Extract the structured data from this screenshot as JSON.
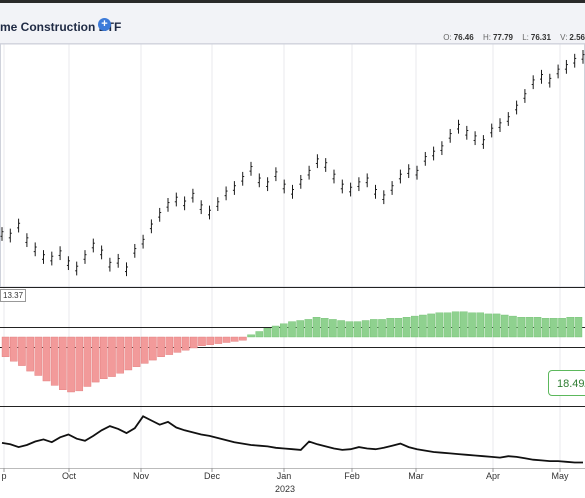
{
  "header": {
    "title": "me Construction ETF",
    "info_icon": "info-circle-icon",
    "ohlc": [
      {
        "key": "O:",
        "value": "76.46"
      },
      {
        "key": "H:",
        "value": "77.79"
      },
      {
        "key": "L:",
        "value": "76.31"
      },
      {
        "key": "V:",
        "value": "2.56"
      }
    ]
  },
  "panels": {
    "indicator_label": "13.37",
    "badge_value": "18.49/"
  },
  "x_axis": {
    "month_labels": [
      "p",
      "Oct",
      "Nov",
      "Dec",
      "Jan",
      "Feb",
      "Mar",
      "Apr",
      "May"
    ],
    "year_label": "2023"
  },
  "colors": {
    "price_bars": "#1a1a1a",
    "positive_histogram": "#8fd18f",
    "negative_histogram": "#f29a9a",
    "line": "#111111",
    "accent": "#3d7bd9"
  },
  "chart_data": [
    {
      "type": "ohlc",
      "series": [
        {
          "values": [
            24.0,
            23.8,
            25.1,
            23.2,
            22.0,
            21.0,
            20.8,
            21.5,
            20.2,
            19.5,
            21.0,
            22.5,
            21.6,
            20.0,
            20.5,
            19.4,
            21.8,
            23.0,
            25.0,
            26.5,
            27.8,
            28.5,
            28.0,
            29.0,
            27.5,
            26.8,
            27.9,
            29.3,
            30.0,
            31.2,
            32.5,
            31.0,
            30.5,
            31.8,
            30.2,
            29.5,
            30.8,
            32.0,
            33.5,
            33.0,
            31.5,
            30.2,
            29.8,
            30.5,
            31.0,
            29.5,
            28.8,
            30.0,
            31.5,
            32.2,
            32.0,
            33.8,
            34.5,
            35.2,
            36.8,
            38.0,
            37.2,
            36.5,
            36.0,
            37.5,
            38.2,
            39.0,
            40.5,
            42.0,
            43.8,
            44.5,
            44.0,
            45.2,
            45.8,
            46.6,
            47.1
          ]
        }
      ]
    },
    {
      "type": "bar",
      "series": [
        {
          "values": [
            -18,
            -22,
            -26,
            -31,
            -35,
            -40,
            -44,
            -48,
            -50,
            -49,
            -45,
            -41,
            -38,
            -36,
            -33,
            -30,
            -27,
            -24,
            -21,
            -18,
            -16,
            -14,
            -12,
            -10,
            -8,
            -7,
            -6,
            -5,
            -4,
            -3,
            2,
            5,
            8,
            10,
            12,
            14,
            15,
            16,
            18,
            17,
            16,
            15,
            14,
            14,
            15,
            16,
            16,
            17,
            17,
            18,
            19,
            20,
            21,
            22,
            22,
            23,
            23,
            22,
            22,
            21,
            21,
            20,
            19,
            18,
            18,
            18,
            17,
            17,
            17,
            18,
            18
          ]
        }
      ]
    },
    {
      "type": "line",
      "series": [
        {
          "values": [
            14.8,
            14.6,
            14.2,
            14.5,
            15.0,
            15.3,
            14.9,
            15.6,
            16.0,
            15.4,
            15.1,
            15.8,
            16.6,
            17.2,
            16.8,
            16.2,
            16.9,
            18.6,
            18.0,
            17.4,
            17.8,
            17.0,
            16.6,
            16.3,
            16.0,
            15.8,
            15.5,
            15.2,
            14.9,
            14.7,
            14.5,
            14.4,
            14.3,
            14.1,
            14.0,
            13.9,
            13.8,
            15.0,
            14.6,
            14.3,
            14.0,
            13.8,
            13.9,
            14.2,
            14.0,
            13.9,
            14.1,
            14.4,
            14.7,
            14.2,
            13.9,
            13.7,
            13.5,
            13.4,
            13.3,
            13.2,
            13.1,
            13.0,
            12.9,
            12.8,
            12.7,
            12.9,
            12.8,
            12.6,
            12.4,
            12.3,
            12.2,
            12.2,
            12.1,
            12.0,
            12.0
          ]
        }
      ]
    }
  ]
}
